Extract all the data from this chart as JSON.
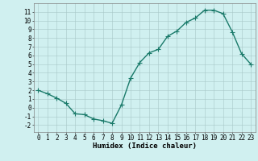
{
  "x": [
    0,
    1,
    2,
    3,
    4,
    5,
    6,
    7,
    8,
    9,
    10,
    11,
    12,
    13,
    14,
    15,
    16,
    17,
    18,
    19,
    20,
    21,
    22,
    23
  ],
  "y": [
    2.0,
    1.6,
    1.1,
    0.5,
    -0.7,
    -0.8,
    -1.3,
    -1.5,
    -1.8,
    0.3,
    3.4,
    5.2,
    6.3,
    6.7,
    8.2,
    8.8,
    9.8,
    10.3,
    11.2,
    11.2,
    10.8,
    8.7,
    6.2,
    5.0
  ],
  "line_color": "#1a7a6a",
  "marker": "+",
  "markersize": 4,
  "linewidth": 1.0,
  "bg_color": "#d0f0f0",
  "grid_color": "#a8c8c8",
  "xlabel": "Humidex (Indice chaleur)",
  "xlim": [
    -0.5,
    23.5
  ],
  "ylim": [
    -2.8,
    12.0
  ],
  "xticks": [
    0,
    1,
    2,
    3,
    4,
    5,
    6,
    7,
    8,
    9,
    10,
    11,
    12,
    13,
    14,
    15,
    16,
    17,
    18,
    19,
    20,
    21,
    22,
    23
  ],
  "yticks": [
    -2,
    -1,
    0,
    1,
    2,
    3,
    4,
    5,
    6,
    7,
    8,
    9,
    10,
    11
  ],
  "tick_fontsize": 5.5,
  "xlabel_fontsize": 6.5
}
